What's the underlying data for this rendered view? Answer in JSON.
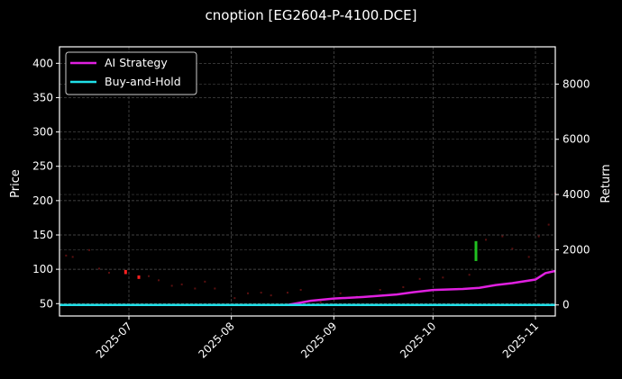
{
  "chart_data": {
    "type": "line",
    "title": "cnoption [EG2604-P-4100.DCE]",
    "xlabel": "",
    "ylabel": "Price",
    "ylabel_right": "Return",
    "background": "#000000",
    "grid": true,
    "legend_position": "upper left",
    "ylim": [
      32,
      424
    ],
    "ylim_right": [
      -400,
      9350
    ],
    "yticks": [
      50,
      100,
      150,
      200,
      250,
      300,
      350,
      400
    ],
    "yticks_right": [
      0,
      2000,
      4000,
      6000,
      8000
    ],
    "xtick_labels": [
      "2025-07",
      "2025-08",
      "2025-09",
      "2025-10",
      "2025-11"
    ],
    "x_range": [
      "2025-06-10",
      "2025-11-07"
    ],
    "legend": [
      {
        "name": "AI Strategy",
        "color": "#e020e0"
      },
      {
        "name": "Buy-and-Hold",
        "color": "#20e0e8"
      }
    ],
    "series": [
      {
        "name": "AI Strategy",
        "axis": "right",
        "color": "#e020e0",
        "x": [
          "2025-06-10",
          "2025-08-18",
          "2025-08-25",
          "2025-09-01",
          "2025-09-10",
          "2025-09-20",
          "2025-09-25",
          "2025-10-01",
          "2025-10-10",
          "2025-10-15",
          "2025-10-20",
          "2025-10-25",
          "2025-11-01",
          "2025-11-04",
          "2025-11-07"
        ],
        "values": [
          0,
          0,
          150,
          230,
          290,
          380,
          460,
          540,
          580,
          620,
          720,
          790,
          920,
          1150,
          1230
        ]
      },
      {
        "name": "Buy-and-Hold",
        "axis": "right",
        "color": "#20e0e8",
        "x": [
          "2025-06-10",
          "2025-11-07"
        ],
        "values": [
          0,
          0
        ]
      }
    ],
    "candles": [
      {
        "date": "2025-06-30",
        "open": 99,
        "close": 93,
        "color": "#ff2020"
      },
      {
        "date": "2025-07-04",
        "open": 91,
        "close": 86,
        "color": "#ff2020"
      },
      {
        "date": "2025-10-14",
        "open": 141,
        "close": 112,
        "color": "#20c020"
      }
    ],
    "price_dots": [
      [
        "2025-06-12",
        120
      ],
      [
        "2025-06-14",
        118
      ],
      [
        "2025-06-19",
        128
      ],
      [
        "2025-06-22",
        101
      ],
      [
        "2025-06-25",
        95
      ],
      [
        "2025-07-07",
        90
      ],
      [
        "2025-07-10",
        84
      ],
      [
        "2025-07-14",
        76
      ],
      [
        "2025-07-17",
        78
      ],
      [
        "2025-07-21",
        72
      ],
      [
        "2025-07-24",
        82
      ],
      [
        "2025-07-27",
        72
      ],
      [
        "2025-08-02",
        58
      ],
      [
        "2025-08-06",
        65
      ],
      [
        "2025-08-10",
        66
      ],
      [
        "2025-08-13",
        62
      ],
      [
        "2025-08-18",
        66
      ],
      [
        "2025-08-22",
        70
      ],
      [
        "2025-08-28",
        52
      ],
      [
        "2025-09-03",
        65
      ],
      [
        "2025-09-08",
        60
      ],
      [
        "2025-09-15",
        70
      ],
      [
        "2025-09-22",
        74
      ],
      [
        "2025-09-27",
        86
      ],
      [
        "2025-10-04",
        88
      ],
      [
        "2025-10-12",
        92
      ],
      [
        "2025-10-17",
        143
      ],
      [
        "2025-10-22",
        148
      ],
      [
        "2025-10-25",
        130
      ],
      [
        "2025-10-30",
        118
      ],
      [
        "2025-11-02",
        148
      ],
      [
        "2025-11-05",
        165
      ],
      [
        "2025-11-07",
        210
      ]
    ]
  }
}
